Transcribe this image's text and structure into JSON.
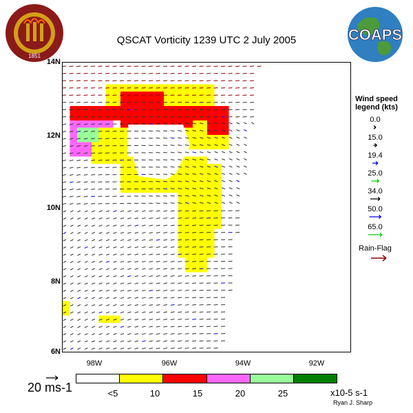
{
  "title": "QSCAT Vorticity 1239 UTC 2 July 2005",
  "logos": {
    "university_seal_text": "FLORIDA STATE UNIVERSITY",
    "seal_year": "1851",
    "coaps": "COAPS"
  },
  "chart_data": {
    "type": "heatmap",
    "title": "QSCAT Vorticity 1239 UTC 2 July 2005",
    "y_ticks": [
      "14N",
      "12N",
      "10N",
      "8N",
      "6N"
    ],
    "x_ticks": [
      "98W",
      "96W",
      "94W",
      "92W"
    ],
    "colorbar": {
      "labels": [
        "<5",
        "10",
        "15",
        "20",
        "25"
      ],
      "colors": [
        "#ffffff",
        "#ffff00",
        "#ff0000",
        "#ff66ff",
        "#99ff99",
        "#008000"
      ],
      "units": "x10-5 s-1"
    },
    "wind_legend": {
      "title": "Wind speed legend (kts)",
      "speeds": [
        "0.0",
        "15.0",
        "19.4",
        "25.0",
        "34.0",
        "50.0",
        "65.0"
      ],
      "colors": [
        "#000000",
        "#000000",
        "#0000ff",
        "#00cc00",
        "#000000",
        "#0000ff",
        "#00cc00"
      ],
      "rain_flag_label": "Rain-Flag",
      "rain_flag_color": "#8b0000"
    },
    "reference_vector": "20 ms-1",
    "credit": "Ryan J. Sharp"
  }
}
